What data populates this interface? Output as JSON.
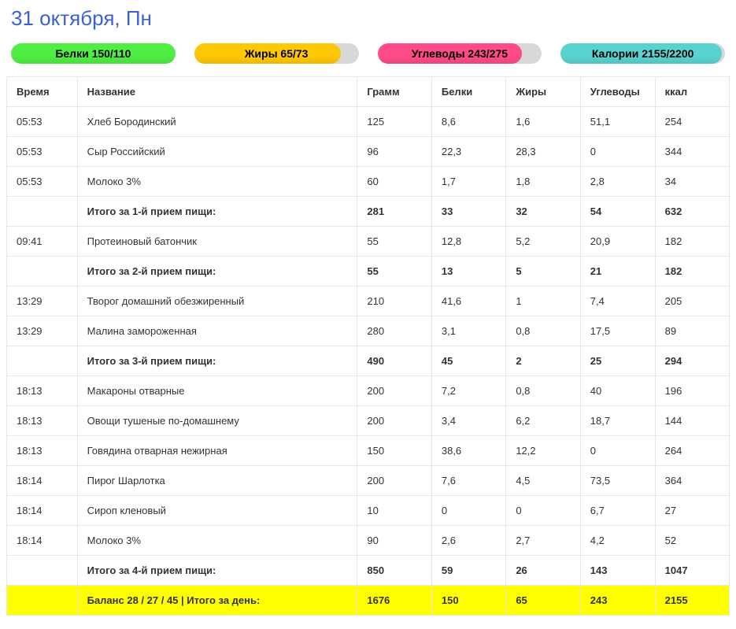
{
  "title": "31 октября, Пн",
  "colors": {
    "title": "#3b5fd6",
    "progress_track": "#d8d8d8",
    "border": "#e6e6e6",
    "highlight_row": "#ffff00"
  },
  "progress_bars": [
    {
      "label": "Белки 150/110",
      "fill_pct": 100,
      "fill_color": "#4fee43"
    },
    {
      "label": "Жиры 65/73",
      "fill_pct": 89,
      "fill_color": "#ffc807"
    },
    {
      "label": "Углеводы 243/275",
      "fill_pct": 88,
      "fill_color": "#ff4b88"
    },
    {
      "label": "Калории 2155/2200",
      "fill_pct": 98,
      "fill_color": "#59d3d0"
    }
  ],
  "table": {
    "headers": [
      "Время",
      "Название",
      "Грамм",
      "Белки",
      "Жиры",
      "Углеводы",
      "ккал"
    ],
    "rows": [
      {
        "type": "data",
        "cells": [
          "05:53",
          "Хлеб Бородинский",
          "125",
          "8,6",
          "1,6",
          "51,1",
          "254"
        ]
      },
      {
        "type": "data",
        "cells": [
          "05:53",
          "Сыр Российский",
          "96",
          "22,3",
          "28,3",
          "0",
          "344"
        ]
      },
      {
        "type": "data",
        "cells": [
          "05:53",
          "Молоко 3%",
          "60",
          "1,7",
          "1,8",
          "2,8",
          "34"
        ]
      },
      {
        "type": "subtotal",
        "cells": [
          "",
          "Итого за 1-й прием пищи:",
          "281",
          "33",
          "32",
          "54",
          "632"
        ]
      },
      {
        "type": "data",
        "cells": [
          "09:41",
          "Протеиновый батончик",
          "55",
          "12,8",
          "5,2",
          "20,9",
          "182"
        ]
      },
      {
        "type": "subtotal",
        "cells": [
          "",
          "Итого за 2-й прием пищи:",
          "55",
          "13",
          "5",
          "21",
          "182"
        ]
      },
      {
        "type": "data",
        "cells": [
          "13:29",
          "Творог домашний обезжиренный",
          "210",
          "41,6",
          "1",
          "7,4",
          "205"
        ]
      },
      {
        "type": "data",
        "cells": [
          "13:29",
          "Малина замороженная",
          "280",
          "3,1",
          "0,8",
          "17,5",
          "89"
        ]
      },
      {
        "type": "subtotal",
        "cells": [
          "",
          "Итого за 3-й прием пищи:",
          "490",
          "45",
          "2",
          "25",
          "294"
        ]
      },
      {
        "type": "data",
        "cells": [
          "18:13",
          "Макароны отварные",
          "200",
          "7,2",
          "0,8",
          "40",
          "196"
        ]
      },
      {
        "type": "data",
        "cells": [
          "18:13",
          "Овощи тушеные по-домашнему",
          "200",
          "3,4",
          "6,2",
          "18,7",
          "144"
        ]
      },
      {
        "type": "data",
        "cells": [
          "18:13",
          "Говядина отварная нежирная",
          "150",
          "38,6",
          "12,2",
          "0",
          "264"
        ]
      },
      {
        "type": "data",
        "cells": [
          "18:14",
          "Пирог Шарлотка",
          "200",
          "7,6",
          "4,5",
          "73,5",
          "364"
        ]
      },
      {
        "type": "data",
        "cells": [
          "18:14",
          "Сироп кленовый",
          "10",
          "0",
          "0",
          "6,7",
          "27"
        ]
      },
      {
        "type": "data",
        "cells": [
          "18:14",
          "Молоко 3%",
          "90",
          "2,6",
          "2,7",
          "4,2",
          "52"
        ]
      },
      {
        "type": "subtotal",
        "cells": [
          "",
          "Итого за 4-й прием пищи:",
          "850",
          "59",
          "26",
          "143",
          "1047"
        ]
      },
      {
        "type": "grandtotal",
        "cells": [
          "",
          "Баланс 28 / 27 / 45 | Итого за день:",
          "1676",
          "150",
          "65",
          "243",
          "2155"
        ]
      }
    ]
  }
}
